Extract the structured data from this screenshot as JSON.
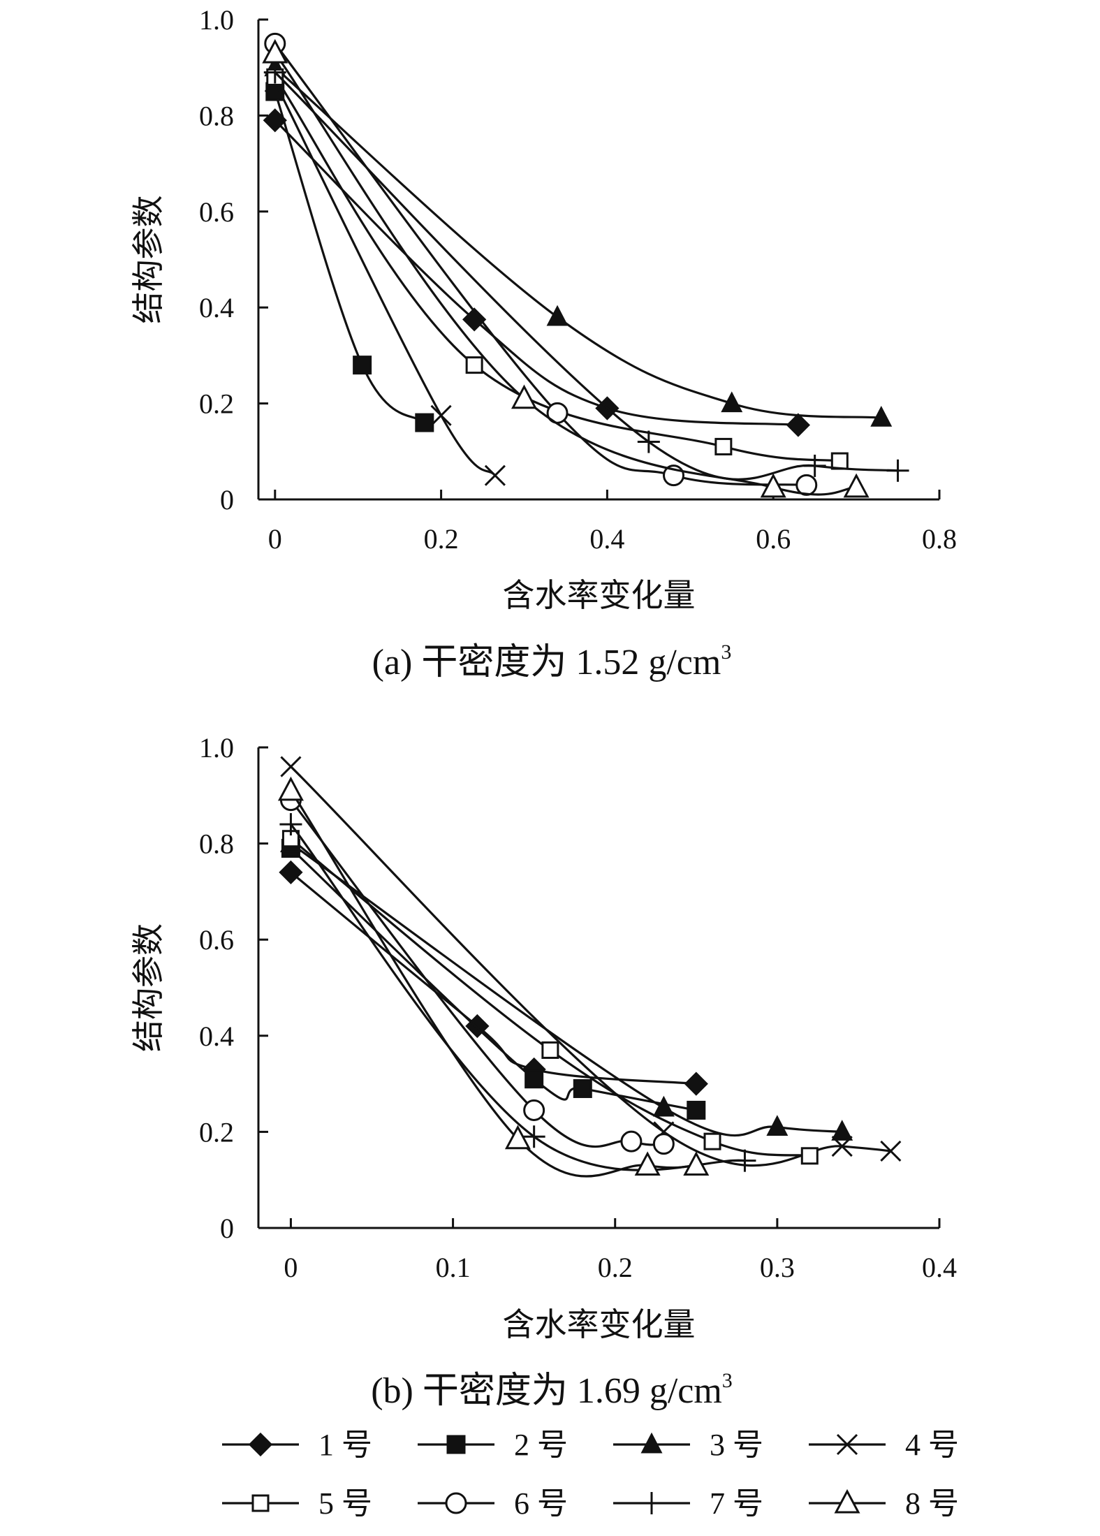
{
  "colors": {
    "ink": "#111111",
    "background": "#ffffff"
  },
  "chart_data": [
    {
      "id": "a",
      "type": "line",
      "caption": "(a) 干密度为 1.52 g/cm",
      "caption_sup": "3",
      "xlabel": "含水率变化量",
      "ylabel": "结构参数",
      "xlim": [
        -0.02,
        0.8
      ],
      "ylim": [
        0,
        1.0
      ],
      "xticks": [
        0,
        0.2,
        0.4,
        0.6,
        0.8
      ],
      "xtick_labels": [
        "0",
        "0.2",
        "0.4",
        "0.6",
        "0.8"
      ],
      "yticks": [
        0,
        0.2,
        0.4,
        0.6,
        0.8,
        1.0
      ],
      "ytick_labels": [
        "0",
        "0.2",
        "0.4",
        "0.6",
        "0.8",
        "1.0"
      ],
      "grid": false,
      "series": [
        {
          "name": "1 号",
          "marker": "diamond",
          "points": [
            [
              0,
              0.79
            ],
            [
              0.24,
              0.375
            ],
            [
              0.4,
              0.19
            ],
            [
              0.63,
              0.155
            ]
          ]
        },
        {
          "name": "2 号",
          "marker": "square-filled",
          "points": [
            [
              0,
              0.85
            ],
            [
              0.105,
              0.28
            ],
            [
              0.18,
              0.16
            ]
          ]
        },
        {
          "name": "3 号",
          "marker": "triangle-filled",
          "points": [
            [
              0,
              0.9
            ],
            [
              0.34,
              0.38
            ],
            [
              0.55,
              0.2
            ],
            [
              0.73,
              0.17
            ]
          ]
        },
        {
          "name": "4 号",
          "marker": "x",
          "points": [
            [
              0,
              0.87
            ],
            [
              0.2,
              0.175
            ],
            [
              0.265,
              0.05
            ]
          ]
        },
        {
          "name": "5 号",
          "marker": "square-open",
          "points": [
            [
              0,
              0.88
            ],
            [
              0.24,
              0.28
            ],
            [
              0.54,
              0.11
            ],
            [
              0.68,
              0.08
            ]
          ]
        },
        {
          "name": "6 号",
          "marker": "circle-open",
          "points": [
            [
              0,
              0.95
            ],
            [
              0.34,
              0.18
            ],
            [
              0.48,
              0.05
            ],
            [
              0.64,
              0.03
            ]
          ]
        },
        {
          "name": "7 号",
          "marker": "plus",
          "points": [
            [
              0,
              0.89
            ],
            [
              0.45,
              0.12
            ],
            [
              0.65,
              0.07
            ],
            [
              0.75,
              0.06
            ]
          ]
        },
        {
          "name": "8 号",
          "marker": "triangle-open",
          "points": [
            [
              0,
              0.93
            ],
            [
              0.3,
              0.21
            ],
            [
              0.6,
              0.025
            ],
            [
              0.7,
              0.025
            ]
          ]
        }
      ]
    },
    {
      "id": "b",
      "type": "line",
      "caption": "(b) 干密度为 1.69 g/cm",
      "caption_sup": "3",
      "xlabel": "含水率变化量",
      "ylabel": "结构参数",
      "xlim": [
        -0.02,
        0.4
      ],
      "ylim": [
        0,
        1.0
      ],
      "xticks": [
        0,
        0.1,
        0.2,
        0.3,
        0.4
      ],
      "xtick_labels": [
        "0",
        "0.1",
        "0.2",
        "0.3",
        "0.4"
      ],
      "yticks": [
        0,
        0.2,
        0.4,
        0.6,
        0.8,
        1.0
      ],
      "ytick_labels": [
        "0",
        "0.2",
        "0.4",
        "0.6",
        "0.8",
        "1.0"
      ],
      "grid": false,
      "series": [
        {
          "name": "1 号",
          "marker": "diamond",
          "points": [
            [
              0,
              0.74
            ],
            [
              0.115,
              0.42
            ],
            [
              0.15,
              0.33
            ],
            [
              0.25,
              0.3
            ]
          ]
        },
        {
          "name": "2 号",
          "marker": "square-filled",
          "points": [
            [
              0,
              0.79
            ],
            [
              0.15,
              0.31
            ],
            [
              0.18,
              0.29
            ],
            [
              0.25,
              0.245
            ]
          ]
        },
        {
          "name": "3 号",
          "marker": "triangle-filled",
          "points": [
            [
              0,
              0.8
            ],
            [
              0.23,
              0.25
            ],
            [
              0.3,
              0.21
            ],
            [
              0.34,
              0.2
            ]
          ]
        },
        {
          "name": "4 号",
          "marker": "x",
          "points": [
            [
              0,
              0.96
            ],
            [
              0.23,
              0.2
            ],
            [
              0.34,
              0.17
            ],
            [
              0.37,
              0.16
            ]
          ]
        },
        {
          "name": "5 号",
          "marker": "square-open",
          "points": [
            [
              0,
              0.81
            ],
            [
              0.16,
              0.37
            ],
            [
              0.26,
              0.18
            ],
            [
              0.32,
              0.15
            ]
          ]
        },
        {
          "name": "6 号",
          "marker": "circle-open",
          "points": [
            [
              0,
              0.89
            ],
            [
              0.15,
              0.245
            ],
            [
              0.21,
              0.18
            ],
            [
              0.23,
              0.175
            ]
          ]
        },
        {
          "name": "7 号",
          "marker": "plus",
          "points": [
            [
              0,
              0.84
            ],
            [
              0.15,
              0.19
            ],
            [
              0.28,
              0.14
            ]
          ]
        },
        {
          "name": "8 号",
          "marker": "triangle-open",
          "points": [
            [
              0,
              0.91
            ],
            [
              0.14,
              0.185
            ],
            [
              0.22,
              0.13
            ],
            [
              0.25,
              0.13
            ]
          ]
        }
      ]
    }
  ],
  "legend": {
    "placement": "bottom",
    "entries": [
      {
        "label": "1 号",
        "marker": "diamond"
      },
      {
        "label": "2 号",
        "marker": "square-filled"
      },
      {
        "label": "3 号",
        "marker": "triangle-filled"
      },
      {
        "label": "4 号",
        "marker": "x"
      },
      {
        "label": "5 号",
        "marker": "square-open"
      },
      {
        "label": "6 号",
        "marker": "circle-open"
      },
      {
        "label": "7 号",
        "marker": "plus"
      },
      {
        "label": "8 号",
        "marker": "triangle-open"
      }
    ]
  }
}
